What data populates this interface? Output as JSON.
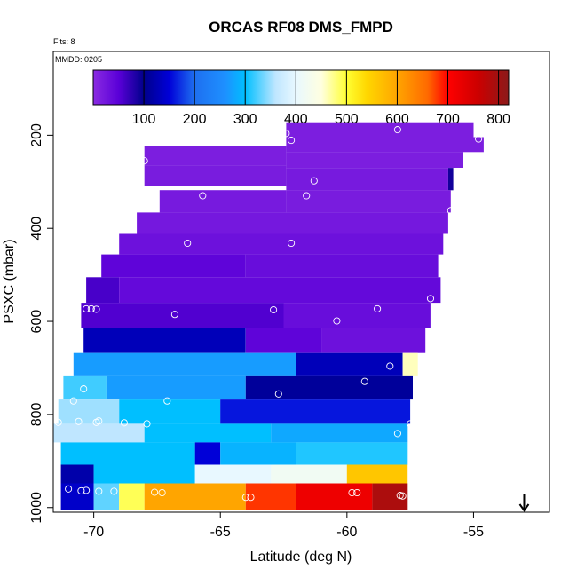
{
  "chart_data": {
    "type": "heatmap",
    "title": "ORCAS RF08 DMS_FMPD",
    "note_flights": "Flts: 8",
    "note_date": "MMDD: 0205",
    "xlabel": "Latitude (deg N)",
    "ylabel": "PSXC (mbar)",
    "xlim": [
      -71.6,
      -52.0
    ],
    "ylim": [
      1010,
      20
    ],
    "y_reversed": true,
    "xticks": [
      -70,
      -65,
      -60,
      -55
    ],
    "xtick_labels": [
      "-70",
      "-65",
      "-60",
      "-55"
    ],
    "yticks": [
      200,
      400,
      600,
      800,
      1000
    ],
    "ytick_labels": [
      "200",
      "400",
      "600",
      "800",
      "1000"
    ],
    "colorbar": {
      "range": [
        0,
        820
      ],
      "ticks": [
        100,
        200,
        300,
        400,
        500,
        600,
        700,
        800
      ],
      "tick_labels": [
        "100",
        "200",
        "300",
        "400",
        "500",
        "600",
        "700",
        "800"
      ],
      "stops": [
        [
          0,
          "#8a2be2"
        ],
        [
          50,
          "#5a00d8"
        ],
        [
          100,
          "#00008b"
        ],
        [
          150,
          "#0000d8"
        ],
        [
          200,
          "#1e6ff0"
        ],
        [
          260,
          "#1e90ff"
        ],
        [
          300,
          "#00bfff"
        ],
        [
          360,
          "#bfe6ff"
        ],
        [
          400,
          "#e8f8ff"
        ],
        [
          450,
          "#ffffe0"
        ],
        [
          500,
          "#ffff33"
        ],
        [
          540,
          "#ffd700"
        ],
        [
          600,
          "#ffa500"
        ],
        [
          660,
          "#ff6a00"
        ],
        [
          700,
          "#ff0000"
        ],
        [
          760,
          "#cc0000"
        ],
        [
          820,
          "#8b1a1a"
        ]
      ]
    },
    "layers": [
      {
        "p_top": 172,
        "p_bot": 204,
        "lat0": -62.4,
        "lat1": -55.0,
        "segments": [
          {
            "from": -62.4,
            "to": -55.0,
            "value": 15
          }
        ]
      },
      {
        "p_top": 204,
        "p_bot": 236,
        "lat0": -62.4,
        "lat1": -54.6,
        "segments": [
          {
            "from": -62.4,
            "to": -54.6,
            "value": 15
          }
        ]
      },
      {
        "p_top": 223,
        "p_bot": 265,
        "lat0": -68.0,
        "lat1": -62.4,
        "segments": [
          {
            "from": -68.0,
            "to": -62.4,
            "value": 15
          }
        ]
      },
      {
        "p_top": 236,
        "p_bot": 270,
        "lat0": -62.4,
        "lat1": -55.4,
        "segments": [
          {
            "from": -62.4,
            "to": -55.4,
            "value": 15
          }
        ]
      },
      {
        "p_top": 265,
        "p_bot": 310,
        "lat0": -68.0,
        "lat1": -62.4,
        "segments": [
          {
            "from": -68.0,
            "to": -62.4,
            "value": 18
          }
        ]
      },
      {
        "p_top": 270,
        "p_bot": 318,
        "lat0": -62.4,
        "lat1": -55.8,
        "segments": [
          {
            "from": -62.4,
            "to": -56.0,
            "value": 20
          },
          {
            "from": -56.0,
            "to": -55.8,
            "value": 90
          }
        ]
      },
      {
        "p_top": 318,
        "p_bot": 366,
        "lat0": -67.4,
        "lat1": -55.9,
        "segments": [
          {
            "from": -67.4,
            "to": -62.4,
            "value": 20
          },
          {
            "from": -62.4,
            "to": -55.9,
            "value": 18
          }
        ]
      },
      {
        "p_top": 366,
        "p_bot": 412,
        "lat0": -68.3,
        "lat1": -56.0,
        "segments": [
          {
            "from": -68.3,
            "to": -56.0,
            "value": 22
          }
        ]
      },
      {
        "p_top": 412,
        "p_bot": 456,
        "lat0": -69.0,
        "lat1": -56.2,
        "segments": [
          {
            "from": -69.0,
            "to": -56.2,
            "value": 30
          }
        ]
      },
      {
        "p_top": 456,
        "p_bot": 505,
        "lat0": -69.7,
        "lat1": -56.4,
        "segments": [
          {
            "from": -69.7,
            "to": -64.0,
            "value": 45
          },
          {
            "from": -64.0,
            "to": -56.4,
            "value": 35
          }
        ]
      },
      {
        "p_top": 505,
        "p_bot": 560,
        "lat0": -70.3,
        "lat1": -56.3,
        "segments": [
          {
            "from": -70.3,
            "to": -69.0,
            "value": 60
          },
          {
            "from": -69.0,
            "to": -56.3,
            "value": 40
          }
        ]
      },
      {
        "p_top": 560,
        "p_bot": 615,
        "lat0": -70.5,
        "lat1": -56.7,
        "segments": [
          {
            "from": -70.5,
            "to": -62.5,
            "value": 55
          },
          {
            "from": -62.5,
            "to": -56.7,
            "value": 35
          }
        ]
      },
      {
        "p_top": 615,
        "p_bot": 668,
        "lat0": -70.4,
        "lat1": -56.9,
        "segments": [
          {
            "from": -70.4,
            "to": -64.0,
            "value": 130
          },
          {
            "from": -64.0,
            "to": -61.0,
            "value": 45
          },
          {
            "from": -61.0,
            "to": -56.9,
            "value": 30
          }
        ]
      },
      {
        "p_top": 668,
        "p_bot": 718,
        "lat0": -70.8,
        "lat1": -57.2,
        "segments": [
          {
            "from": -70.8,
            "to": -62.0,
            "value": 270
          },
          {
            "from": -62.0,
            "to": -57.8,
            "value": 130
          },
          {
            "from": -57.8,
            "to": -57.2,
            "value": 460
          }
        ]
      },
      {
        "p_top": 718,
        "p_bot": 768,
        "lat0": -71.2,
        "lat1": -57.4,
        "segments": [
          {
            "from": -71.2,
            "to": -69.5,
            "value": 320
          },
          {
            "from": -69.5,
            "to": -64.0,
            "value": 270
          },
          {
            "from": -64.0,
            "to": -57.4,
            "value": 110
          }
        ]
      },
      {
        "p_top": 768,
        "p_bot": 820,
        "lat0": -71.4,
        "lat1": -57.5,
        "segments": [
          {
            "from": -71.4,
            "to": -69.0,
            "value": 350
          },
          {
            "from": -69.0,
            "to": -65.0,
            "value": 300
          },
          {
            "from": -65.0,
            "to": -57.5,
            "value": 160
          }
        ]
      },
      {
        "p_top": 820,
        "p_bot": 860,
        "lat0": -71.6,
        "lat1": -57.6,
        "segments": [
          {
            "from": -71.6,
            "to": -68.0,
            "value": 360
          },
          {
            "from": -68.0,
            "to": -63.0,
            "value": 300
          },
          {
            "from": -63.0,
            "to": -57.6,
            "value": 280
          }
        ]
      },
      {
        "p_top": 860,
        "p_bot": 908,
        "lat0": -71.3,
        "lat1": -57.6,
        "segments": [
          {
            "from": -71.3,
            "to": -66.0,
            "value": 300
          },
          {
            "from": -66.0,
            "to": -65.0,
            "value": 150
          },
          {
            "from": -65.0,
            "to": -62.0,
            "value": 290
          },
          {
            "from": -62.0,
            "to": -57.6,
            "value": 310
          }
        ]
      },
      {
        "p_top": 908,
        "p_bot": 948,
        "lat0": -71.3,
        "lat1": -57.6,
        "segments": [
          {
            "from": -71.3,
            "to": -70.0,
            "value": 120
          },
          {
            "from": -70.0,
            "to": -66.0,
            "value": 300
          },
          {
            "from": -66.0,
            "to": -63.0,
            "value": 400
          },
          {
            "from": -63.0,
            "to": -60.0,
            "value": 420
          },
          {
            "from": -60.0,
            "to": -57.6,
            "value": 560
          }
        ]
      },
      {
        "p_top": 948,
        "p_bot": 1005,
        "lat0": -71.3,
        "lat1": -57.6,
        "segments": [
          {
            "from": -71.3,
            "to": -70.0,
            "value": 140
          },
          {
            "from": -70.0,
            "to": -69.0,
            "value": 330
          },
          {
            "from": -69.0,
            "to": -68.0,
            "value": 490
          },
          {
            "from": -68.0,
            "to": -64.0,
            "value": 600
          },
          {
            "from": -64.0,
            "to": -62.0,
            "value": 680
          },
          {
            "from": -62.0,
            "to": -59.0,
            "value": 720
          },
          {
            "from": -59.0,
            "to": -57.6,
            "value": 790
          }
        ]
      }
    ],
    "sample_points": [
      {
        "lat": -58.0,
        "p": 188
      },
      {
        "lat": -62.4,
        "p": 196
      },
      {
        "lat": -62.2,
        "p": 211
      },
      {
        "lat": -54.8,
        "p": 208
      },
      {
        "lat": -67.8,
        "p": 216
      },
      {
        "lat": -68.0,
        "p": 255
      },
      {
        "lat": -68.3,
        "p": 300
      },
      {
        "lat": -65.7,
        "p": 330
      },
      {
        "lat": -61.3,
        "p": 298
      },
      {
        "lat": -61.6,
        "p": 330
      },
      {
        "lat": -55.9,
        "p": 362
      },
      {
        "lat": -68.9,
        "p": 375
      },
      {
        "lat": -66.3,
        "p": 432
      },
      {
        "lat": -62.2,
        "p": 432
      },
      {
        "lat": -56.7,
        "p": 551
      },
      {
        "lat": -70.3,
        "p": 573
      },
      {
        "lat": -70.1,
        "p": 573
      },
      {
        "lat": -69.9,
        "p": 574
      },
      {
        "lat": -66.8,
        "p": 585
      },
      {
        "lat": -62.9,
        "p": 575
      },
      {
        "lat": -60.4,
        "p": 599
      },
      {
        "lat": -58.8,
        "p": 573
      },
      {
        "lat": -58.3,
        "p": 696
      },
      {
        "lat": -56.9,
        "p": 678
      },
      {
        "lat": -59.3,
        "p": 729
      },
      {
        "lat": -70.4,
        "p": 745
      },
      {
        "lat": -70.8,
        "p": 771
      },
      {
        "lat": -67.1,
        "p": 771
      },
      {
        "lat": -62.7,
        "p": 756
      },
      {
        "lat": -58.0,
        "p": 841
      },
      {
        "lat": -57.5,
        "p": 820
      },
      {
        "lat": -71.4,
        "p": 817
      },
      {
        "lat": -70.6,
        "p": 815
      },
      {
        "lat": -69.9,
        "p": 817
      },
      {
        "lat": -69.8,
        "p": 814
      },
      {
        "lat": -68.8,
        "p": 818
      },
      {
        "lat": -67.9,
        "p": 820
      },
      {
        "lat": -71.0,
        "p": 960
      },
      {
        "lat": -70.5,
        "p": 964
      },
      {
        "lat": -70.3,
        "p": 963
      },
      {
        "lat": -69.8,
        "p": 965
      },
      {
        "lat": -69.2,
        "p": 965
      },
      {
        "lat": -67.6,
        "p": 967
      },
      {
        "lat": -67.3,
        "p": 968
      },
      {
        "lat": -64.0,
        "p": 978
      },
      {
        "lat": -63.8,
        "p": 978
      },
      {
        "lat": -59.8,
        "p": 968
      },
      {
        "lat": -59.6,
        "p": 968
      },
      {
        "lat": -57.9,
        "p": 974
      },
      {
        "lat": -57.8,
        "p": 975
      }
    ],
    "arrow_lat": -53.0
  }
}
